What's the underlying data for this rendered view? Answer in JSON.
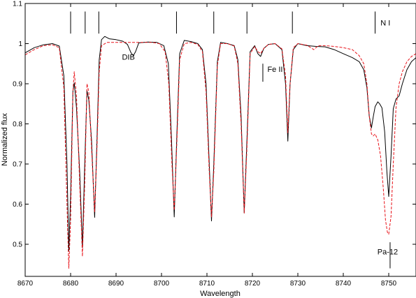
{
  "chart_data": {
    "type": "line",
    "title": "",
    "xlabel": "Wavelength",
    "ylabel": "Normalized flux",
    "xlim": [
      8670,
      8756
    ],
    "ylim": [
      0.42,
      1.1
    ],
    "x_ticks": [
      8670,
      8680,
      8690,
      8700,
      8710,
      8720,
      8730,
      8740,
      8750
    ],
    "y_ticks": [
      0.5,
      0.6,
      0.7,
      0.8,
      0.9,
      1.0,
      1.1
    ],
    "y_tick_labels": [
      "0.5",
      "0.6",
      "0.7",
      "0.8",
      "0.9",
      "1",
      "1.1"
    ],
    "grid": false,
    "series": [
      {
        "color": "#000000",
        "dash": "solid",
        "points": [
          [
            8670.0,
            0.977
          ],
          [
            8672.0,
            0.99
          ],
          [
            8674.0,
            0.997
          ],
          [
            8676.0,
            1.0
          ],
          [
            8677.5,
            0.994
          ],
          [
            8678.5,
            0.92
          ],
          [
            8679.2,
            0.7
          ],
          [
            8679.6,
            0.483
          ],
          [
            8680.0,
            0.62
          ],
          [
            8680.5,
            0.882
          ],
          [
            8680.8,
            0.902
          ],
          [
            8681.3,
            0.84
          ],
          [
            8682.0,
            0.68
          ],
          [
            8682.6,
            0.492
          ],
          [
            8683.1,
            0.7
          ],
          [
            8683.6,
            0.883
          ],
          [
            8684.0,
            0.86
          ],
          [
            8684.6,
            0.76
          ],
          [
            8685.3,
            0.567
          ],
          [
            8685.8,
            0.76
          ],
          [
            8686.3,
            0.96
          ],
          [
            8686.8,
            1.01
          ],
          [
            8687.5,
            1.018
          ],
          [
            8688.5,
            1.012
          ],
          [
            8690.0,
            1.01
          ],
          [
            8691.5,
            1.006
          ],
          [
            8692.5,
            0.998
          ],
          [
            8693.3,
            0.977
          ],
          [
            8693.8,
            0.97
          ],
          [
            8694.3,
            0.98
          ],
          [
            8695.0,
            1.002
          ],
          [
            8697.0,
            1.004
          ],
          [
            8699.0,
            1.003
          ],
          [
            8700.5,
            0.995
          ],
          [
            8701.5,
            0.95
          ],
          [
            8702.2,
            0.76
          ],
          [
            8702.8,
            0.568
          ],
          [
            8703.4,
            0.78
          ],
          [
            8704.0,
            0.975
          ],
          [
            8705.0,
            1.008
          ],
          [
            8706.5,
            1.005
          ],
          [
            8708.0,
            1.0
          ],
          [
            8709.0,
            0.985
          ],
          [
            8709.8,
            0.9
          ],
          [
            8710.5,
            0.7
          ],
          [
            8711.0,
            0.558
          ],
          [
            8711.5,
            0.7
          ],
          [
            8712.3,
            0.955
          ],
          [
            8713.0,
            1.003
          ],
          [
            8714.5,
            1.0
          ],
          [
            8716.0,
            0.995
          ],
          [
            8716.8,
            0.96
          ],
          [
            8717.5,
            0.82
          ],
          [
            8718.2,
            0.578
          ],
          [
            8718.8,
            0.76
          ],
          [
            8719.5,
            0.98
          ],
          [
            8720.5,
            0.995
          ],
          [
            8721.2,
            0.975
          ],
          [
            8721.8,
            0.968
          ],
          [
            8722.5,
            0.988
          ],
          [
            8723.5,
            0.998
          ],
          [
            8725.0,
            1.0
          ],
          [
            8726.5,
            0.985
          ],
          [
            8727.3,
            0.9
          ],
          [
            8727.8,
            0.757
          ],
          [
            8728.3,
            0.9
          ],
          [
            8729.0,
            0.985
          ],
          [
            8730.0,
            1.0
          ],
          [
            8732.0,
            0.995
          ],
          [
            8734.0,
            0.993
          ],
          [
            8736.0,
            0.992
          ],
          [
            8738.0,
            0.985
          ],
          [
            8740.0,
            0.975
          ],
          [
            8742.0,
            0.965
          ],
          [
            8743.5,
            0.955
          ],
          [
            8744.5,
            0.935
          ],
          [
            8745.2,
            0.89
          ],
          [
            8745.7,
            0.82
          ],
          [
            8746.2,
            0.79
          ],
          [
            8746.6,
            0.818
          ],
          [
            8747.0,
            0.843
          ],
          [
            8747.6,
            0.855
          ],
          [
            8748.0,
            0.85
          ],
          [
            8748.5,
            0.84
          ],
          [
            8749.1,
            0.78
          ],
          [
            8749.6,
            0.68
          ],
          [
            8750.0,
            0.619
          ],
          [
            8750.5,
            0.72
          ],
          [
            8751.0,
            0.838
          ],
          [
            8751.6,
            0.862
          ],
          [
            8752.3,
            0.87
          ],
          [
            8753.0,
            0.9
          ],
          [
            8754.0,
            0.935
          ],
          [
            8755.0,
            0.955
          ],
          [
            8756.0,
            0.965
          ]
        ]
      },
      {
        "color": "#e8141b",
        "dash": "dashed",
        "points": [
          [
            8670.0,
            0.972
          ],
          [
            8672.0,
            0.985
          ],
          [
            8674.0,
            0.995
          ],
          [
            8676.0,
            0.997
          ],
          [
            8677.5,
            0.99
          ],
          [
            8678.5,
            0.89
          ],
          [
            8679.2,
            0.6
          ],
          [
            8679.6,
            0.44
          ],
          [
            8680.0,
            0.56
          ],
          [
            8680.5,
            0.88
          ],
          [
            8680.8,
            0.93
          ],
          [
            8681.3,
            0.87
          ],
          [
            8682.0,
            0.65
          ],
          [
            8682.6,
            0.47
          ],
          [
            8683.1,
            0.65
          ],
          [
            8683.6,
            0.9
          ],
          [
            8684.0,
            0.88
          ],
          [
            8684.6,
            0.74
          ],
          [
            8685.3,
            0.58
          ],
          [
            8685.8,
            0.74
          ],
          [
            8686.3,
            0.93
          ],
          [
            8686.8,
            0.995
          ],
          [
            8688.0,
            1.003
          ],
          [
            8690.0,
            1.003
          ],
          [
            8692.0,
            1.003
          ],
          [
            8694.0,
            1.003
          ],
          [
            8696.0,
            1.003
          ],
          [
            8698.0,
            1.003
          ],
          [
            8699.5,
            1.0
          ],
          [
            8700.8,
            0.98
          ],
          [
            8701.6,
            0.9
          ],
          [
            8702.3,
            0.7
          ],
          [
            8702.8,
            0.585
          ],
          [
            8703.4,
            0.76
          ],
          [
            8704.0,
            0.96
          ],
          [
            8705.0,
            1.0
          ],
          [
            8706.5,
            1.003
          ],
          [
            8708.0,
            0.998
          ],
          [
            8709.0,
            0.98
          ],
          [
            8709.8,
            0.88
          ],
          [
            8710.5,
            0.68
          ],
          [
            8711.0,
            0.568
          ],
          [
            8711.5,
            0.68
          ],
          [
            8712.3,
            0.945
          ],
          [
            8713.0,
            1.0
          ],
          [
            8714.5,
            1.0
          ],
          [
            8716.0,
            0.994
          ],
          [
            8716.8,
            0.95
          ],
          [
            8717.5,
            0.8
          ],
          [
            8718.2,
            0.578
          ],
          [
            8718.8,
            0.74
          ],
          [
            8719.5,
            0.975
          ],
          [
            8720.5,
            0.993
          ],
          [
            8721.2,
            0.98
          ],
          [
            8721.8,
            0.975
          ],
          [
            8722.5,
            0.988
          ],
          [
            8723.5,
            0.998
          ],
          [
            8725.0,
            1.0
          ],
          [
            8726.5,
            0.987
          ],
          [
            8727.3,
            0.92
          ],
          [
            8727.8,
            0.778
          ],
          [
            8728.3,
            0.9
          ],
          [
            8729.0,
            0.99
          ],
          [
            8730.0,
            1.0
          ],
          [
            8732.0,
            0.996
          ],
          [
            8733.5,
            0.985
          ],
          [
            8734.5,
            0.995
          ],
          [
            8736.0,
            0.995
          ],
          [
            8738.0,
            0.993
          ],
          [
            8740.0,
            0.99
          ],
          [
            8742.0,
            0.985
          ],
          [
            8743.5,
            0.97
          ],
          [
            8744.5,
            0.95
          ],
          [
            8745.2,
            0.9
          ],
          [
            8745.7,
            0.82
          ],
          [
            8746.2,
            0.775
          ],
          [
            8746.6,
            0.77
          ],
          [
            8747.0,
            0.775
          ],
          [
            8747.6,
            0.76
          ],
          [
            8748.2,
            0.72
          ],
          [
            8748.8,
            0.64
          ],
          [
            8749.3,
            0.56
          ],
          [
            8749.7,
            0.53
          ],
          [
            8750.0,
            0.525
          ],
          [
            8750.5,
            0.57
          ],
          [
            8751.0,
            0.7
          ],
          [
            8751.6,
            0.84
          ],
          [
            8752.3,
            0.9
          ],
          [
            8753.0,
            0.93
          ],
          [
            8754.0,
            0.955
          ],
          [
            8755.0,
            0.968
          ],
          [
            8756.0,
            0.975
          ]
        ]
      }
    ],
    "line_markers": [
      8680.0,
      8683.2,
      8686.2,
      8703.3,
      8711.5,
      8718.8,
      8728.8,
      8747.0
    ],
    "annotations": [
      {
        "text": "N I",
        "x": 8748.2,
        "y": 1.045
      },
      {
        "text": "DIB",
        "x": 8691.3,
        "y": 0.96
      },
      {
        "text": "Fe II",
        "x": 8723.3,
        "y": 0.93
      },
      {
        "text": "Pa-12",
        "x": 8747.5,
        "y": 0.475
      }
    ],
    "fe_marker": {
      "x": 8722.3,
      "y_from": 0.95,
      "y_to": 0.905
    },
    "pa_marker": {
      "x": 8750.3,
      "y_from": 0.505,
      "y_to": 0.44
    }
  }
}
